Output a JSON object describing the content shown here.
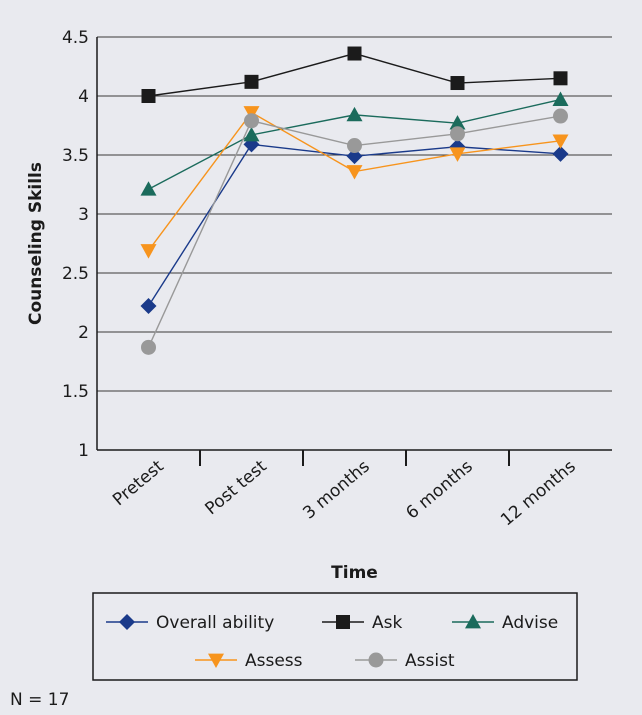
{
  "chart_data": {
    "type": "line",
    "categories": [
      "Pretest",
      "Post test",
      "3 months",
      "6 months",
      "12 months"
    ],
    "xlabel": "Time",
    "ylabel": "Counseling Skills",
    "ylim": [
      1,
      4.5
    ],
    "yticks": [
      "1",
      "1.5",
      "2",
      "2.5",
      "3",
      "3.5",
      "4",
      "4.5"
    ],
    "grid": true,
    "legend_position": "bottom",
    "series": [
      {
        "name": "Overall ability",
        "marker": "diamond",
        "color": "#1a3a8a",
        "values": [
          2.22,
          3.59,
          3.49,
          3.57,
          3.51
        ]
      },
      {
        "name": "Ask",
        "marker": "square",
        "color": "#1b1b1b",
        "values": [
          4.0,
          4.12,
          4.36,
          4.11,
          4.15
        ]
      },
      {
        "name": "Advise",
        "marker": "triangle-up",
        "color": "#1b6b5c",
        "values": [
          3.21,
          3.67,
          3.84,
          3.77,
          3.97
        ]
      },
      {
        "name": "Assess",
        "marker": "triangle-down",
        "color": "#f7941d",
        "values": [
          2.69,
          3.86,
          3.36,
          3.51,
          3.62
        ]
      },
      {
        "name": "Assist",
        "marker": "circle",
        "color": "#999999",
        "values": [
          1.87,
          3.79,
          3.58,
          3.68,
          3.83
        ]
      }
    ]
  },
  "footnote": "N = 17"
}
